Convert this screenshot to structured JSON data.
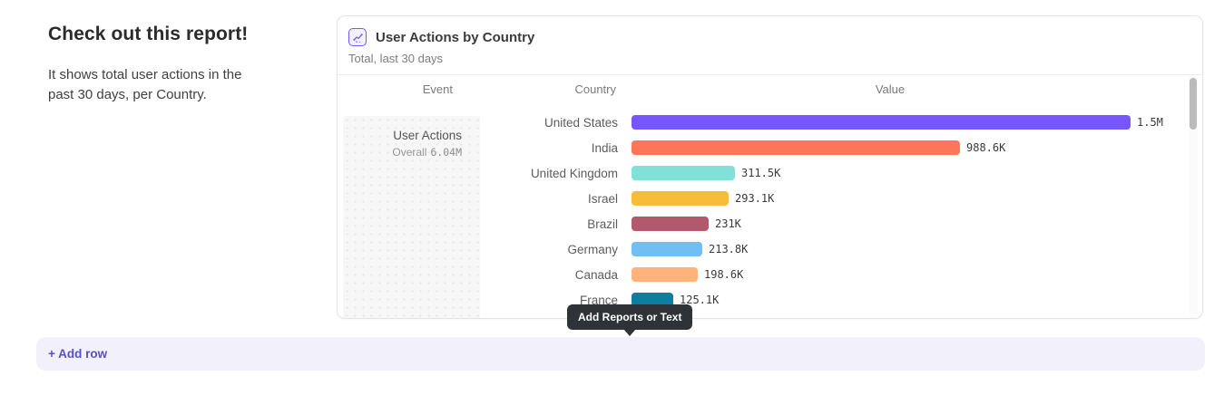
{
  "text_tile": {
    "heading": "Check out this report!",
    "description": "It shows total user actions in the past 30 days, per Country."
  },
  "report_card": {
    "title": "User Actions by Country",
    "subtitle": "Total, last 30 days",
    "columns": {
      "event": "Event",
      "country": "Country",
      "value": "Value"
    },
    "event": {
      "name": "User Actions",
      "overall_label": "Overall",
      "overall_value": "6.04M"
    }
  },
  "chart_data": {
    "type": "bar",
    "orientation": "horizontal",
    "title": "User Actions by Country",
    "subtitle": "Total, last 30 days",
    "event": "User Actions",
    "overall_total": "6.04M",
    "categories": [
      "United States",
      "India",
      "United Kingdom",
      "Israel",
      "Brazil",
      "Germany",
      "Canada",
      "France"
    ],
    "values": [
      1500000,
      988600,
      311500,
      293100,
      231000,
      213800,
      198600,
      125100
    ],
    "value_labels": [
      "1.5M",
      "988.6K",
      "311.5K",
      "293.1K",
      "231K",
      "213.8K",
      "198.6K",
      "125.1K"
    ],
    "bar_colors": [
      "#7856FF",
      "#FF7557",
      "#80E1D9",
      "#F8BC3B",
      "#B2596E",
      "#72BEF4",
      "#FFB27A",
      "#0D7EA0"
    ],
    "xlim": [
      0,
      1500000
    ],
    "legend": "none",
    "grid": false
  },
  "tooltip": {
    "label": "Add Reports or Text"
  },
  "footer": {
    "add_row_label": "+ Add row"
  },
  "colors": {
    "accent_purple": "#7856FF",
    "add_row_bg": "#F2F0FB",
    "add_row_text": "#584FC2",
    "tooltip_bg": "#2F3237",
    "card_border": "#E4E4E4",
    "event_cell_bg": "#F7F7F7"
  }
}
